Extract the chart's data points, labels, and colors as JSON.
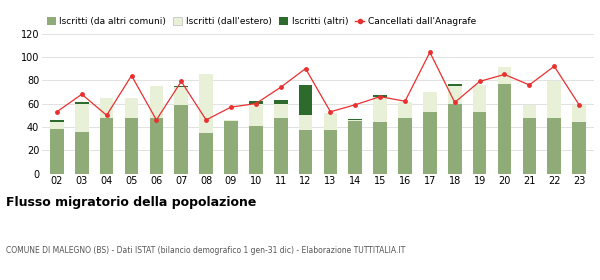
{
  "years": [
    "02",
    "03",
    "04",
    "05",
    "06",
    "07",
    "08",
    "09",
    "10",
    "11",
    "12",
    "13",
    "14",
    "15",
    "16",
    "17",
    "18",
    "19",
    "20",
    "21",
    "22",
    "23"
  ],
  "iscritti_comuni": [
    38,
    36,
    48,
    48,
    48,
    59,
    35,
    45,
    41,
    48,
    37,
    37,
    45,
    44,
    48,
    53,
    60,
    53,
    77,
    48,
    48,
    44
  ],
  "iscritti_estero": [
    6,
    24,
    17,
    17,
    27,
    15,
    50,
    1,
    19,
    12,
    13,
    15,
    1,
    22,
    13,
    17,
    15,
    23,
    14,
    11,
    31,
    15
  ],
  "iscritti_altri": [
    2,
    1,
    0,
    0,
    0,
    1,
    0,
    0,
    2,
    3,
    26,
    0,
    1,
    1,
    0,
    0,
    2,
    0,
    0,
    0,
    0,
    0
  ],
  "cancellati": [
    53,
    68,
    50,
    84,
    46,
    79,
    46,
    57,
    60,
    74,
    90,
    53,
    59,
    66,
    62,
    104,
    61,
    79,
    85,
    76,
    92,
    59
  ],
  "color_comuni": "#8fac78",
  "color_estero": "#e8f0d8",
  "color_altri": "#2d6b2d",
  "color_cancellati": "#e83030",
  "ylim": [
    0,
    120
  ],
  "yticks": [
    0,
    20,
    40,
    60,
    80,
    100,
    120
  ],
  "title": "Flusso migratorio della popolazione",
  "subtitle": "COMUNE DI MALEGNO (BS) - Dati ISTAT (bilancio demografico 1 gen-31 dic) - Elaborazione TUTTITALIA.IT",
  "legend_labels": [
    "Iscritti (da altri comuni)",
    "Iscritti (dall'estero)",
    "Iscritti (altri)",
    "Cancellati dall'Anagrafe"
  ],
  "bg_color": "#ffffff",
  "grid_color": "#dddddd"
}
